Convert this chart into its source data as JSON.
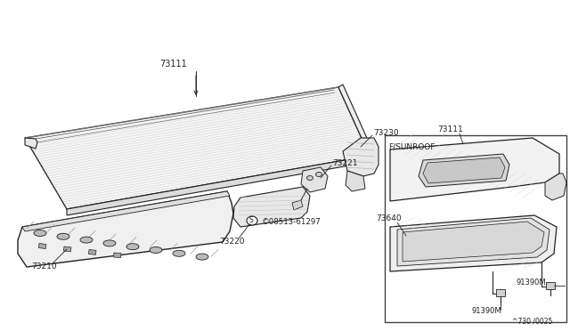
{
  "bg": "#ffffff",
  "lc": "#555555",
  "dk": "#222222",
  "thin": "#888888",
  "fig_w": 6.4,
  "fig_h": 3.72,
  "dpi": 100,
  "parts": {
    "73111": "73111",
    "73230": "73230",
    "73221": "73221",
    "screw": "©08513-61297",
    "73220": "73220",
    "73210": "73210",
    "inset_title": "F/SUNROOF",
    "73111i": "73111",
    "73640": "73640",
    "91390M_r": "91390M",
    "91390M_b": "91390M",
    "footer": "^730 /0025"
  }
}
